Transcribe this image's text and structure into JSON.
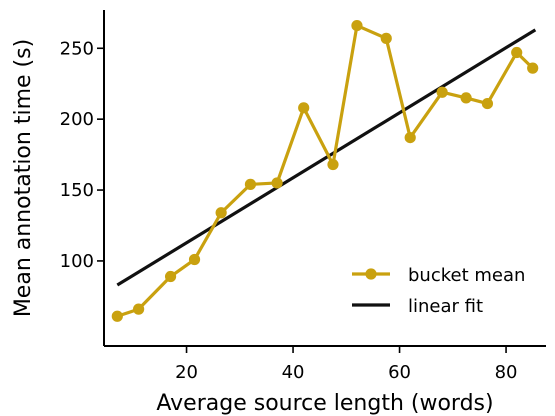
{
  "colors": {
    "mean": "#c9a10f",
    "fit": "#111111",
    "axis": "#000000"
  },
  "chart_data": {
    "type": "line",
    "title": "",
    "xlabel": "Average source length (words)",
    "ylabel": "Mean annotation time (s)",
    "xlim": [
      4.5,
      87.5
    ],
    "ylim": [
      40,
      277
    ],
    "xticks": [
      20,
      40,
      60,
      80
    ],
    "yticks": [
      100,
      150,
      200,
      250
    ],
    "grid": false,
    "legend_position": "lower-right",
    "series": [
      {
        "name": "bucket mean",
        "style": "line-markers",
        "x": [
          7,
          11,
          17,
          21.5,
          26.5,
          32,
          37,
          42,
          47.5,
          52,
          57.5,
          62,
          68,
          72.5,
          76.5,
          82,
          85
        ],
        "y": [
          61,
          66,
          89,
          101,
          134,
          154,
          155,
          208,
          168,
          266,
          257,
          187,
          219,
          215,
          211,
          247,
          236
        ]
      },
      {
        "name": "linear fit",
        "style": "line",
        "x": [
          7,
          85.5
        ],
        "y": [
          83,
          263
        ]
      }
    ]
  }
}
